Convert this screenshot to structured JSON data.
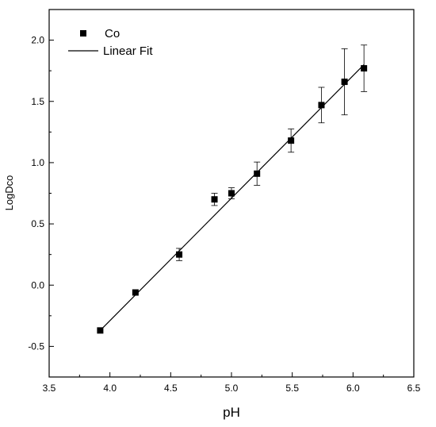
{
  "chart_data": {
    "type": "scatter",
    "title": "",
    "xlabel": "pH",
    "ylabel": "LogDco",
    "xlim": [
      3.5,
      6.5
    ],
    "ylim": [
      -0.75,
      2.25
    ],
    "xticks": [
      "3.5",
      "4.0",
      "4.5",
      "5.0",
      "5.5",
      "6.0",
      "6.5"
    ],
    "yticks": [
      "-0.5",
      "0.0",
      "0.5",
      "1.0",
      "1.5",
      "2.0"
    ],
    "grid": false,
    "legend": {
      "placement": "top-left",
      "entries": [
        {
          "label": "Co",
          "marker": "square"
        },
        {
          "label": "Linear Fit",
          "marker": "line"
        }
      ]
    },
    "series": [
      {
        "name": "Co",
        "marker": "square",
        "color": "#000000",
        "points": [
          {
            "x": 3.92,
            "y": -0.37,
            "err": 0
          },
          {
            "x": 4.21,
            "y": -0.06,
            "err": 0
          },
          {
            "x": 4.57,
            "y": 0.25,
            "err": 0.05
          },
          {
            "x": 4.86,
            "y": 0.7,
            "err": 0.05
          },
          {
            "x": 5.0,
            "y": 0.75,
            "err": 0.045
          },
          {
            "x": 5.21,
            "y": 0.91,
            "err": 0.095
          },
          {
            "x": 5.49,
            "y": 1.18,
            "err": 0.095
          },
          {
            "x": 5.74,
            "y": 1.47,
            "err": 0.145
          },
          {
            "x": 5.93,
            "y": 1.66,
            "err": 0.27
          },
          {
            "x": 6.09,
            "y": 1.77,
            "err": 0.19
          }
        ]
      },
      {
        "name": "Linear Fit",
        "type": "line",
        "color": "#000000",
        "x": [
          3.92,
          6.09
        ],
        "y": [
          -0.37,
          1.8
        ]
      }
    ]
  }
}
